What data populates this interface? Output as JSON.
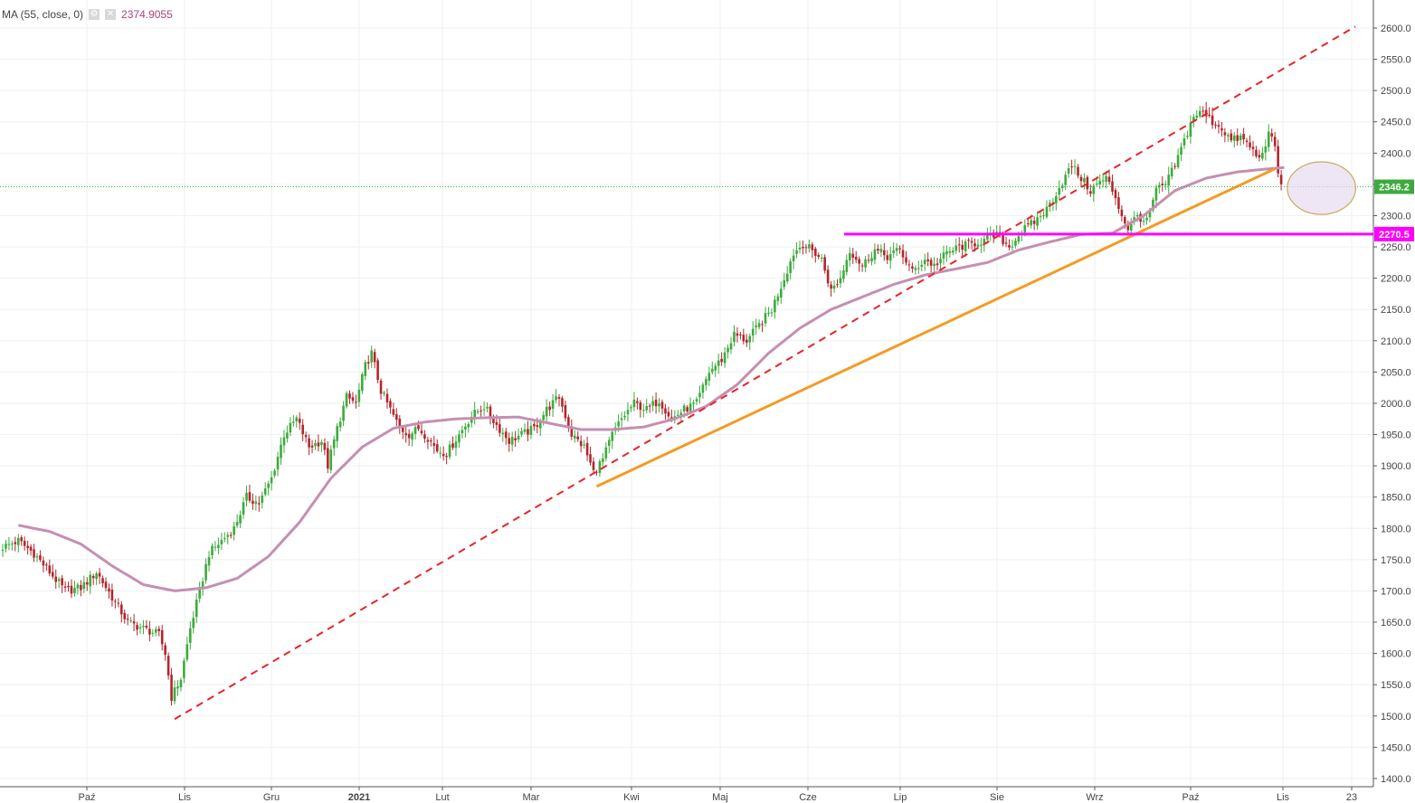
{
  "legend": {
    "indicator": "MA (55, close, 0)",
    "value": "2374.9055",
    "settings_icon": "gear-icon",
    "close_icon": "close-icon"
  },
  "colors": {
    "up": "#3cab3c",
    "down": "#b3262d",
    "ma": "#c58fb0",
    "trend_dashed": "#e8232a",
    "trend_orange": "#f59a23",
    "resistance": "#ff00ff",
    "last_price": "#3cab3c",
    "grid": "#edf2f0",
    "highlight_fill": "#e8def0",
    "highlight_stroke": "#c8ac5e"
  },
  "chart_data": {
    "type": "candlestick",
    "ylim": [
      1390,
      2630
    ],
    "y_ticks": [
      "2600.0",
      "2550.0",
      "2500.0",
      "2450.0",
      "2400.0",
      "2350.0",
      "2300.0",
      "2250.0",
      "2200.0",
      "2150.0",
      "2100.0",
      "2050.0",
      "2000.0",
      "1950.0",
      "1900.0",
      "1850.0",
      "1800.0",
      "1750.0",
      "1700.0",
      "1650.0",
      "1600.0",
      "1550.0",
      "1500.0",
      "1450.0",
      "1400.0"
    ],
    "x_labels": [
      {
        "label": "Paź",
        "bold": false
      },
      {
        "label": "Lis",
        "bold": false
      },
      {
        "label": "Gru",
        "bold": false
      },
      {
        "label": "2021",
        "bold": true
      },
      {
        "label": "Lut",
        "bold": false
      },
      {
        "label": "Mar",
        "bold": false
      },
      {
        "label": "Kwi",
        "bold": false
      },
      {
        "label": "Maj",
        "bold": false
      },
      {
        "label": "Cze",
        "bold": false
      },
      {
        "label": "Lip",
        "bold": false
      },
      {
        "label": "Sie",
        "bold": false
      },
      {
        "label": "Wrz",
        "bold": false
      },
      {
        "label": "Paź",
        "bold": false
      },
      {
        "label": "Lis",
        "bold": false
      },
      {
        "label": "23",
        "bold": false
      }
    ],
    "last_price": "2346.2",
    "resistance_level": "2270.5",
    "close_anchors": [
      [
        0,
        1770
      ],
      [
        5,
        1780
      ],
      [
        10,
        1760
      ],
      [
        15,
        1730
      ],
      [
        20,
        1700
      ],
      [
        25,
        1705
      ],
      [
        30,
        1730
      ],
      [
        35,
        1690
      ],
      [
        40,
        1650
      ],
      [
        45,
        1640
      ],
      [
        50,
        1630
      ],
      [
        52,
        1600
      ],
      [
        54,
        1530
      ],
      [
        57,
        1560
      ],
      [
        60,
        1640
      ],
      [
        63,
        1700
      ],
      [
        66,
        1760
      ],
      [
        70,
        1780
      ],
      [
        74,
        1800
      ],
      [
        78,
        1850
      ],
      [
        82,
        1840
      ],
      [
        86,
        1880
      ],
      [
        90,
        1950
      ],
      [
        94,
        1975
      ],
      [
        98,
        1930
      ],
      [
        102,
        1940
      ],
      [
        104,
        1900
      ],
      [
        107,
        1960
      ],
      [
        110,
        2010
      ],
      [
        113,
        2000
      ],
      [
        116,
        2060
      ],
      [
        118,
        2080
      ],
      [
        121,
        2020
      ],
      [
        124,
        1990
      ],
      [
        127,
        1960
      ],
      [
        130,
        1950
      ],
      [
        133,
        1960
      ],
      [
        136,
        1945
      ],
      [
        139,
        1925
      ],
      [
        142,
        1920
      ],
      [
        146,
        1950
      ],
      [
        150,
        1980
      ],
      [
        154,
        1995
      ],
      [
        158,
        1965
      ],
      [
        162,
        1940
      ],
      [
        166,
        1950
      ],
      [
        170,
        1960
      ],
      [
        174,
        1990
      ],
      [
        178,
        2010
      ],
      [
        182,
        1950
      ],
      [
        186,
        1930
      ],
      [
        189,
        1890
      ],
      [
        192,
        1910
      ],
      [
        195,
        1950
      ],
      [
        198,
        1975
      ],
      [
        202,
        2000
      ],
      [
        206,
        1990
      ],
      [
        210,
        2005
      ],
      [
        214,
        1975
      ],
      [
        218,
        1990
      ],
      [
        222,
        2000
      ],
      [
        226,
        2050
      ],
      [
        230,
        2070
      ],
      [
        234,
        2110
      ],
      [
        238,
        2100
      ],
      [
        242,
        2125
      ],
      [
        246,
        2150
      ],
      [
        250,
        2200
      ],
      [
        253,
        2240
      ],
      [
        256,
        2255
      ],
      [
        260,
        2240
      ],
      [
        262,
        2230
      ],
      [
        265,
        2180
      ],
      [
        268,
        2200
      ],
      [
        271,
        2245
      ],
      [
        275,
        2220
      ],
      [
        279,
        2245
      ],
      [
        283,
        2235
      ],
      [
        287,
        2245
      ],
      [
        291,
        2210
      ],
      [
        295,
        2230
      ],
      [
        298,
        2220
      ],
      [
        302,
        2240
      ],
      [
        306,
        2250
      ],
      [
        310,
        2255
      ],
      [
        314,
        2260
      ],
      [
        318,
        2270
      ],
      [
        322,
        2250
      ],
      [
        326,
        2275
      ],
      [
        330,
        2290
      ],
      [
        334,
        2310
      ],
      [
        338,
        2345
      ],
      [
        342,
        2380
      ],
      [
        345,
        2360
      ],
      [
        348,
        2340
      ],
      [
        350,
        2350
      ],
      [
        353,
        2360
      ],
      [
        356,
        2330
      ],
      [
        358,
        2300
      ],
      [
        360,
        2280
      ],
      [
        363,
        2300
      ],
      [
        366,
        2290
      ],
      [
        369,
        2340
      ],
      [
        372,
        2350
      ],
      [
        375,
        2380
      ],
      [
        378,
        2420
      ],
      [
        381,
        2460
      ],
      [
        384,
        2465
      ],
      [
        387,
        2450
      ],
      [
        390,
        2440
      ],
      [
        393,
        2420
      ],
      [
        396,
        2425
      ],
      [
        399,
        2410
      ],
      [
        402,
        2390
      ],
      [
        405,
        2430
      ],
      [
        407,
        2410
      ],
      [
        408,
        2370
      ],
      [
        409,
        2346.2
      ]
    ],
    "ma": {
      "period": 55,
      "anchors": [
        [
          5,
          1805
        ],
        [
          15,
          1795
        ],
        [
          25,
          1775
        ],
        [
          35,
          1740
        ],
        [
          45,
          1710
        ],
        [
          55,
          1700
        ],
        [
          65,
          1705
        ],
        [
          75,
          1720
        ],
        [
          85,
          1755
        ],
        [
          95,
          1810
        ],
        [
          105,
          1880
        ],
        [
          115,
          1930
        ],
        [
          125,
          1960
        ],
        [
          135,
          1970
        ],
        [
          145,
          1975
        ],
        [
          155,
          1977
        ],
        [
          165,
          1978
        ],
        [
          175,
          1968
        ],
        [
          185,
          1958
        ],
        [
          195,
          1958
        ],
        [
          205,
          1962
        ],
        [
          215,
          1975
        ],
        [
          225,
          1995
        ],
        [
          235,
          2030
        ],
        [
          245,
          2080
        ],
        [
          255,
          2120
        ],
        [
          265,
          2150
        ],
        [
          275,
          2170
        ],
        [
          285,
          2190
        ],
        [
          295,
          2205
        ],
        [
          305,
          2215
        ],
        [
          315,
          2225
        ],
        [
          325,
          2245
        ],
        [
          335,
          2258
        ],
        [
          345,
          2270
        ],
        [
          355,
          2272
        ],
        [
          365,
          2300
        ],
        [
          375,
          2340
        ],
        [
          385,
          2360
        ],
        [
          395,
          2370
        ],
        [
          405,
          2374.9
        ],
        [
          410,
          2377
        ]
      ]
    },
    "trendlines": [
      {
        "style": "dashed",
        "from": [
          55,
          1495
        ],
        "to": [
          408,
          2530
        ]
      },
      {
        "style": "solid",
        "from": [
          190,
          1867
        ],
        "to": [
          407,
          2375
        ]
      }
    ],
    "highlight_circle": {
      "center": [
        408,
        2344
      ],
      "radius_y_value": 42
    }
  }
}
